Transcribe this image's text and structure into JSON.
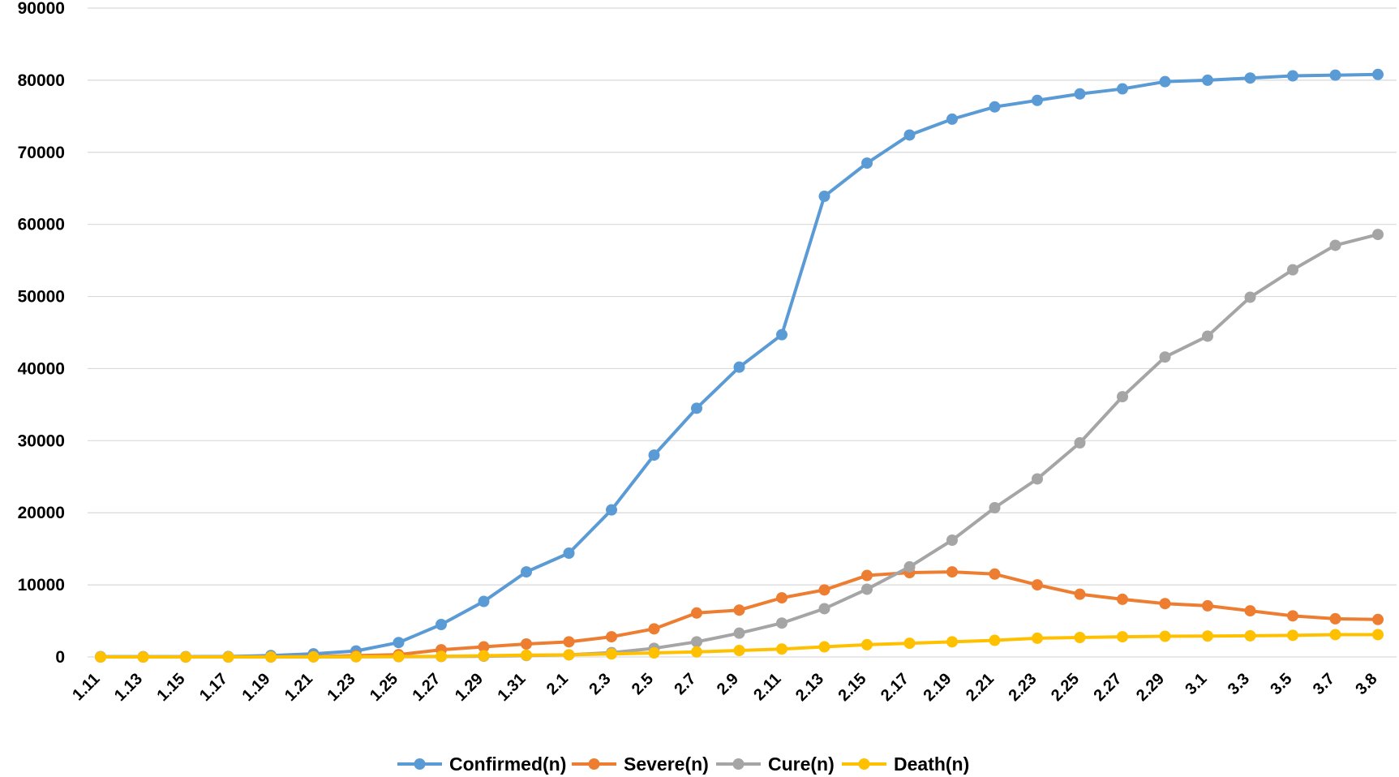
{
  "chart_data": {
    "type": "line",
    "categories": [
      "1.11",
      "1.13",
      "1.15",
      "1.17",
      "1.19",
      "1.21",
      "1.23",
      "1.25",
      "1.27",
      "1.29",
      "1.31",
      "2.1",
      "2.3",
      "2.5",
      "2.7",
      "2.9",
      "2.11",
      "2.13",
      "2.15",
      "2.17",
      "2.19",
      "2.21",
      "2.23",
      "2.25",
      "2.27",
      "2.29",
      "3.1",
      "3.3",
      "3.5",
      "3.7",
      "3.8"
    ],
    "ylim": [
      0,
      90000
    ],
    "yticks": [
      0,
      10000,
      20000,
      30000,
      40000,
      50000,
      60000,
      70000,
      80000,
      90000
    ],
    "grid": true,
    "legend": "bottom",
    "series": [
      {
        "name": "Confirmed(n)",
        "color": "#5B9BD5",
        "values": [
          41,
          41,
          45,
          62,
          198,
          440,
          830,
          2000,
          4500,
          7700,
          11800,
          14400,
          20400,
          28000,
          34500,
          40200,
          44700,
          63900,
          68500,
          72400,
          74600,
          76300,
          77200,
          78100,
          78800,
          79800,
          80000,
          80300,
          80600,
          80700,
          80800
        ]
      },
      {
        "name": "Severe(n)",
        "color": "#ED7D31",
        "values": [
          0,
          0,
          0,
          0,
          10,
          60,
          180,
          320,
          1000,
          1400,
          1800,
          2100,
          2800,
          3900,
          6100,
          6500,
          8200,
          9300,
          11300,
          11700,
          11800,
          11500,
          10000,
          8700,
          8000,
          7400,
          7100,
          6400,
          5700,
          5300,
          5200
        ]
      },
      {
        "name": "Cure(n)",
        "color": "#A5A5A5",
        "values": [
          0,
          0,
          0,
          0,
          0,
          10,
          30,
          40,
          60,
          100,
          200,
          300,
          600,
          1200,
          2100,
          3300,
          4700,
          6700,
          9400,
          12500,
          16200,
          20700,
          24700,
          29700,
          36100,
          41600,
          44500,
          49900,
          53700,
          57100,
          58600
        ]
      },
      {
        "name": "Death(n)",
        "color": "#FFC000",
        "values": [
          1,
          1,
          2,
          2,
          3,
          9,
          25,
          56,
          80,
          170,
          260,
          300,
          420,
          560,
          700,
          900,
          1100,
          1400,
          1700,
          1900,
          2100,
          2300,
          2600,
          2700,
          2800,
          2870,
          2900,
          2940,
          3000,
          3100,
          3100
        ]
      }
    ]
  }
}
